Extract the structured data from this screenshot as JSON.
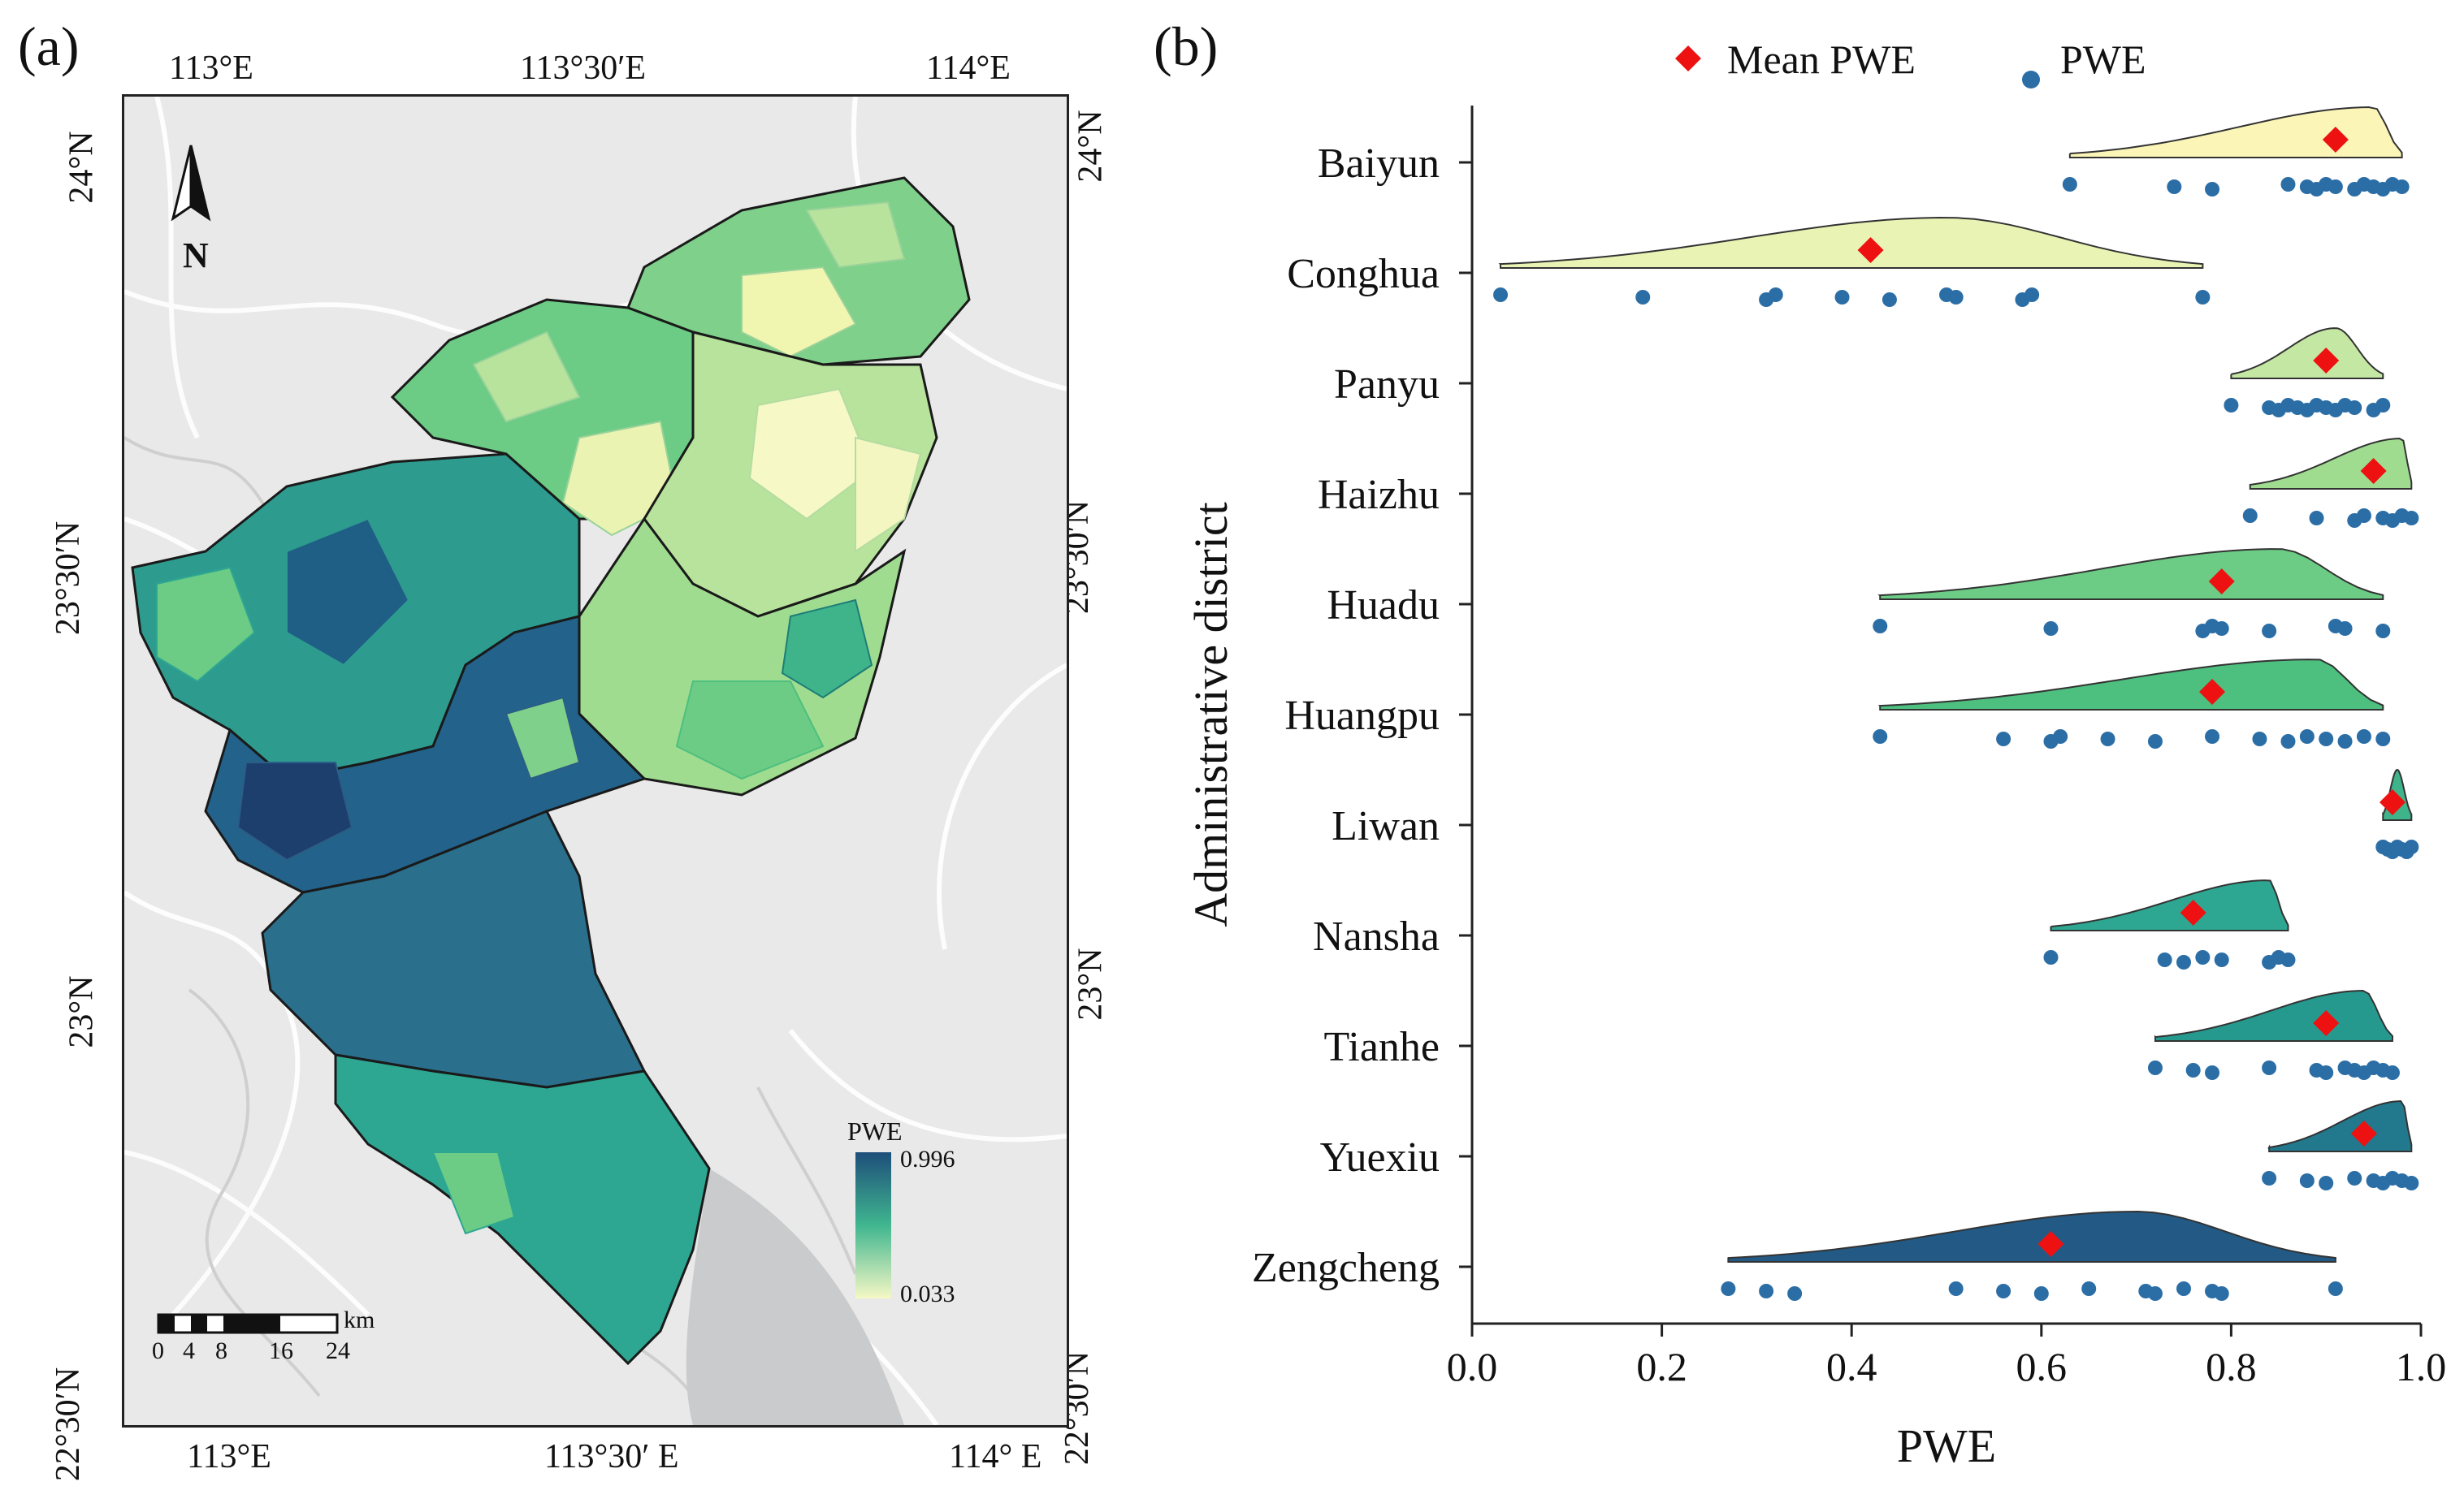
{
  "panel_a": {
    "label": "(a)",
    "top_lon_labels": [
      "113°E",
      "113°30′E",
      "114°E"
    ],
    "bottom_lon_labels": [
      "113°E",
      "113°30′ E",
      "114° E"
    ],
    "left_lat_labels": [
      "24°N",
      "23°30′N",
      "23°N",
      "22°30′N"
    ],
    "right_lat_labels": [
      "24°N",
      "23°30′N",
      "23°N",
      "22°30′N"
    ],
    "north_label": "N",
    "legend": {
      "title": "PWE",
      "max": "0.996",
      "min": "0.033",
      "high_color": "#1d4e7a",
      "mid_color": "#40b68f",
      "low_color": "#f5f8c5"
    },
    "scale_bar": {
      "unit": "km",
      "ticks": [
        "0",
        "4",
        "8",
        "16",
        "24"
      ]
    }
  },
  "panel_b": {
    "label": "(b)"
  },
  "chart_data": {
    "type": "scatter",
    "subtype": "raincloud (half-violin + jittered points + mean marker)",
    "xlabel": "PWE",
    "ylabel": "Administrative district",
    "xlim": [
      0.0,
      1.0
    ],
    "xticks": [
      "0.0",
      "0.2",
      "0.4",
      "0.6",
      "0.8",
      "1.0"
    ],
    "legend": {
      "position": "top",
      "entries": [
        "Mean PWE",
        "PWE"
      ]
    },
    "mean_color": "#ee1111",
    "point_color": "#2b6ea6",
    "categories": [
      "Baiyun",
      "Conghua",
      "Panyu",
      "Haizhu",
      "Huadu",
      "Huangpu",
      "Liwan",
      "Nansha",
      "Tianhe",
      "Yuexiu",
      "Zengcheng"
    ],
    "series": [
      {
        "name": "Baiyun",
        "color": "#fbf6b8",
        "mean": 0.91,
        "range": [
          0.63,
          0.98
        ],
        "peak": 0.95,
        "points": [
          0.63,
          0.74,
          0.78,
          0.86,
          0.88,
          0.89,
          0.9,
          0.91,
          0.93,
          0.94,
          0.95,
          0.96,
          0.97,
          0.98
        ]
      },
      {
        "name": "Conghua",
        "color": "#e9f4b4",
        "mean": 0.42,
        "range": [
          0.03,
          0.77
        ],
        "peak": 0.5,
        "points": [
          0.03,
          0.18,
          0.31,
          0.32,
          0.39,
          0.44,
          0.5,
          0.51,
          0.58,
          0.59,
          0.77
        ]
      },
      {
        "name": "Panyu",
        "color": "#c4e8a3",
        "mean": 0.9,
        "range": [
          0.8,
          0.96
        ],
        "peak": 0.91,
        "points": [
          0.8,
          0.84,
          0.85,
          0.86,
          0.87,
          0.88,
          0.89,
          0.9,
          0.91,
          0.92,
          0.93,
          0.95,
          0.96
        ]
      },
      {
        "name": "Haizhu",
        "color": "#9fdc8f",
        "mean": 0.95,
        "range": [
          0.82,
          0.99
        ],
        "peak": 0.98,
        "points": [
          0.82,
          0.89,
          0.93,
          0.94,
          0.96,
          0.97,
          0.98,
          0.99
        ]
      },
      {
        "name": "Huadu",
        "color": "#6ccc85",
        "mean": 0.79,
        "range": [
          0.43,
          0.96
        ],
        "peak": 0.85,
        "points": [
          0.43,
          0.61,
          0.77,
          0.78,
          0.79,
          0.84,
          0.91,
          0.92,
          0.96
        ]
      },
      {
        "name": "Huangpu",
        "color": "#4dbf7f",
        "mean": 0.78,
        "range": [
          0.43,
          0.96
        ],
        "peak": 0.89,
        "points": [
          0.43,
          0.56,
          0.61,
          0.62,
          0.67,
          0.72,
          0.78,
          0.83,
          0.86,
          0.88,
          0.9,
          0.92,
          0.94,
          0.96
        ]
      },
      {
        "name": "Liwan",
        "color": "#3fb38a",
        "mean": 0.97,
        "range": [
          0.96,
          0.99
        ],
        "peak": 0.975,
        "points": [
          0.96,
          0.965,
          0.97,
          0.975,
          0.98,
          0.985,
          0.99
        ]
      },
      {
        "name": "Nansha",
        "color": "#2ea792",
        "mean": 0.76,
        "range": [
          0.61,
          0.86
        ],
        "peak": 0.84,
        "points": [
          0.61,
          0.73,
          0.75,
          0.77,
          0.79,
          0.84,
          0.85,
          0.86
        ]
      },
      {
        "name": "Tianhe",
        "color": "#26998f",
        "mean": 0.9,
        "range": [
          0.72,
          0.97
        ],
        "peak": 0.94,
        "points": [
          0.72,
          0.76,
          0.78,
          0.84,
          0.89,
          0.9,
          0.92,
          0.93,
          0.94,
          0.95,
          0.96,
          0.97
        ]
      },
      {
        "name": "Yuexiu",
        "color": "#22788c",
        "mean": 0.94,
        "range": [
          0.84,
          0.99
        ],
        "peak": 0.98,
        "points": [
          0.84,
          0.88,
          0.9,
          0.93,
          0.95,
          0.96,
          0.97,
          0.98,
          0.99
        ]
      },
      {
        "name": "Zengcheng",
        "color": "#235a85",
        "mean": 0.61,
        "range": [
          0.27,
          0.91
        ],
        "peak": 0.7,
        "points": [
          0.27,
          0.31,
          0.34,
          0.51,
          0.56,
          0.6,
          0.65,
          0.71,
          0.72,
          0.75,
          0.78,
          0.79,
          0.91
        ]
      }
    ]
  }
}
